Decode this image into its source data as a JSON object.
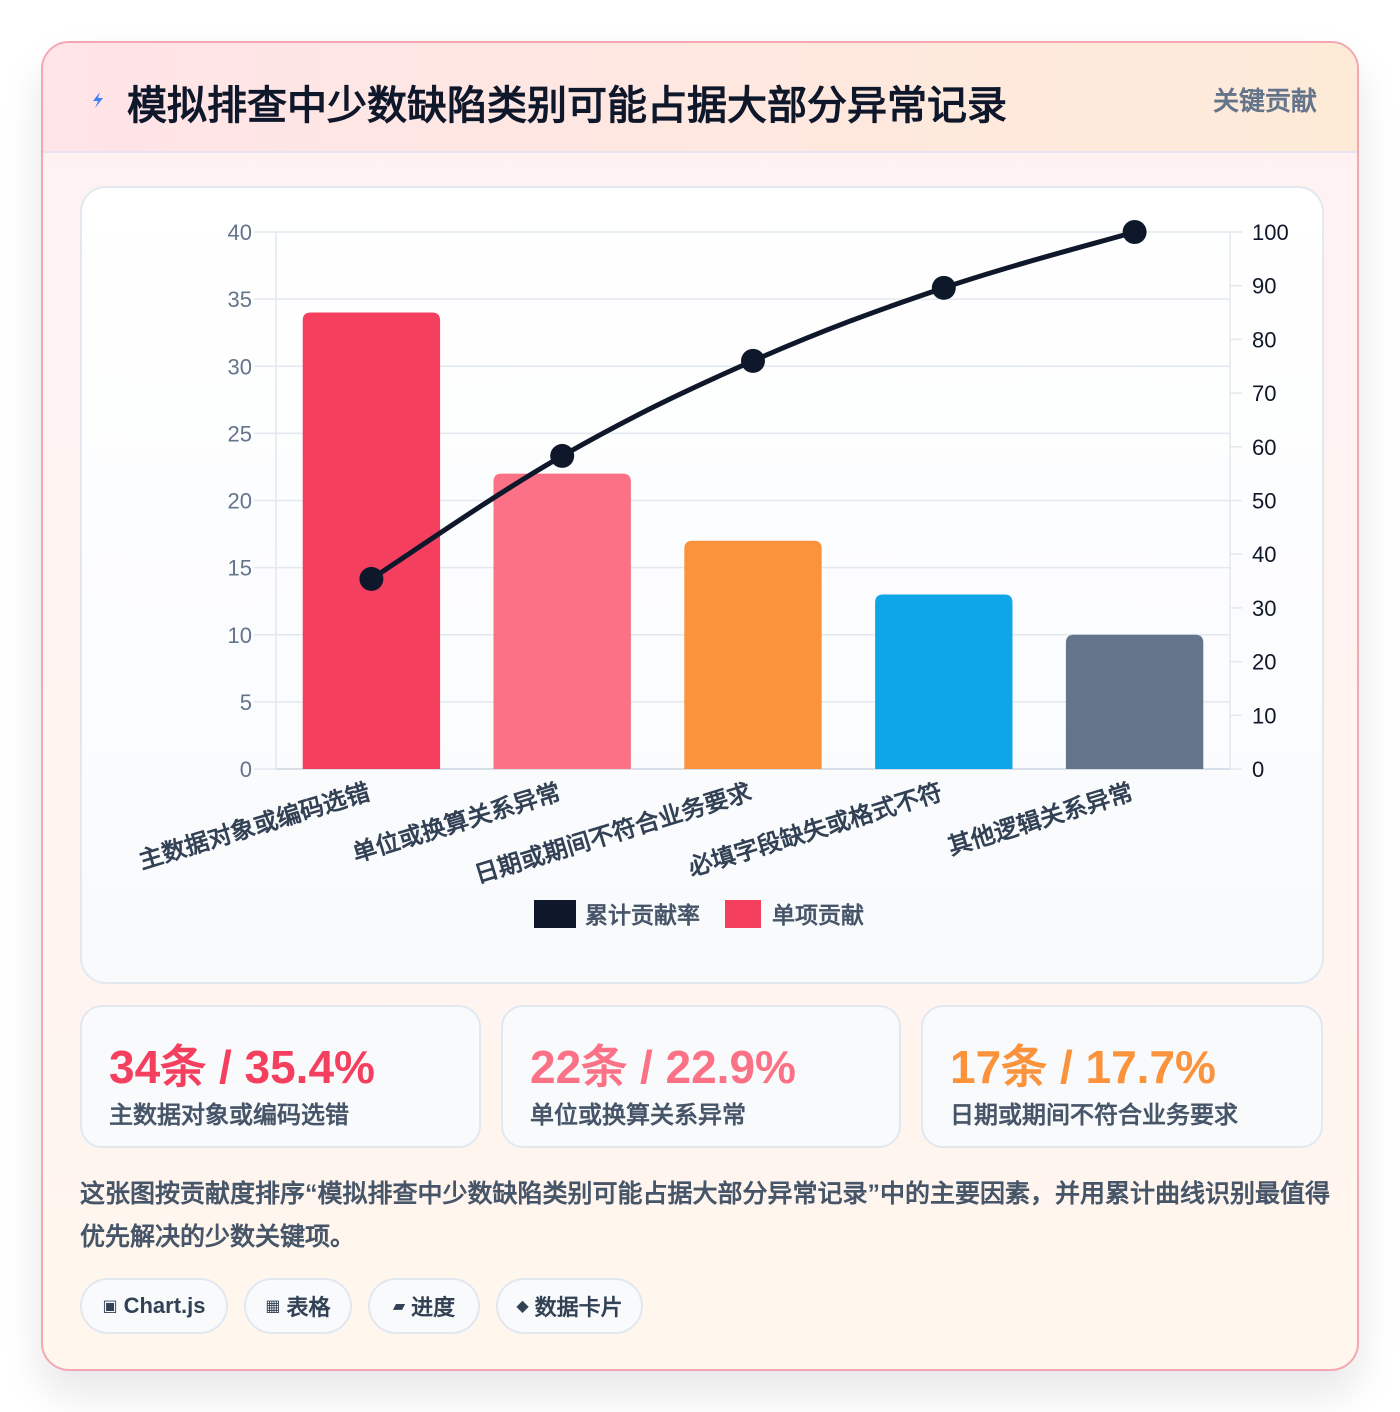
{
  "header": {
    "title": "模拟排查中少数缺陷类别可能占据大部分异常记录",
    "badge": "关键贡献",
    "icon": "lightning-icon"
  },
  "chart_data": {
    "type": "bar",
    "categories": [
      "主数据对象或编码选错",
      "单位或换算关系异常",
      "日期或期间不符合业务要求",
      "必填字段缺失或格式不符",
      "其他逻辑关系异常"
    ],
    "series": [
      {
        "name": "单项贡献",
        "type": "bar",
        "values": [
          34,
          22,
          17,
          13,
          10
        ],
        "colors": [
          "#f43f5e",
          "#fb7185",
          "#fb923c",
          "#0ea5e9",
          "#64748b"
        ]
      },
      {
        "name": "累计贡献率",
        "type": "line",
        "values": [
          35.4,
          58.3,
          76.0,
          89.6,
          100
        ],
        "color": "#0f172a"
      }
    ],
    "y_left": {
      "min": 0,
      "max": 40,
      "step": 5
    },
    "y_right": {
      "min": 0,
      "max": 100,
      "step": 10
    },
    "legend": [
      "累计贡献率",
      "单项贡献"
    ],
    "legend_position": "bottom"
  },
  "stats": [
    {
      "value": "34条 / 35.4%",
      "label": "主数据对象或编码选错",
      "color": "#f43f5e"
    },
    {
      "value": "22条 / 22.9%",
      "label": "单位或换算关系异常",
      "color": "#fb7185"
    },
    {
      "value": "17条 / 17.7%",
      "label": "日期或期间不符合业务要求",
      "color": "#fb923c"
    }
  ],
  "description": "这张图按贡献度排序“模拟排查中少数缺陷类别可能占据大部分异常记录”中的主要因素，并用累计曲线识别最值得优先解决的少数关键项。",
  "tags": [
    {
      "icon": "▣",
      "label": "Chart.js"
    },
    {
      "icon": "▦",
      "label": "表格"
    },
    {
      "icon": "▰",
      "label": "进度"
    },
    {
      "icon": "◆",
      "label": "数据卡片"
    }
  ]
}
